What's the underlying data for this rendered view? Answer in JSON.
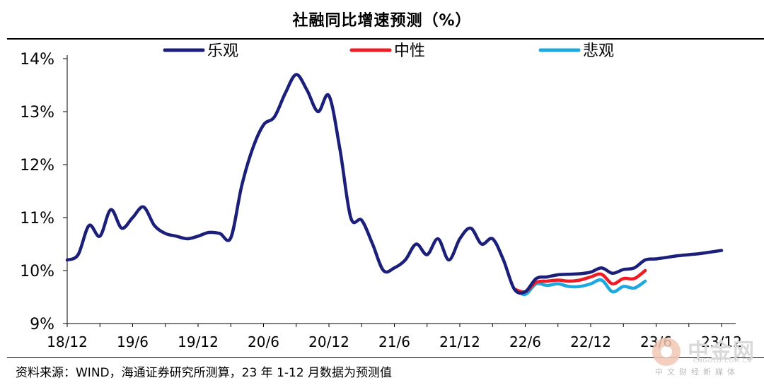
{
  "title": "社融同比增速预测（%）",
  "source": "资料来源：WIND，海通证券研究所测算，23 年 1-12 月数据为预测值",
  "watermark": {
    "name": "中金网",
    "url": "CNGOLD.COM.CN",
    "tagline": "中文财经新媒体"
  },
  "chart_data": {
    "type": "line",
    "title": "社融同比增速预测（%）",
    "xlabel": "",
    "ylabel": "",
    "ylim": [
      9,
      14
    ],
    "yticks": [
      "9%",
      "10%",
      "11%",
      "12%",
      "13%",
      "14%"
    ],
    "xticks": [
      "18/12",
      "19/6",
      "19/12",
      "20/6",
      "20/12",
      "21/6",
      "21/12",
      "22/6",
      "22/12",
      "23/6",
      "23/12"
    ],
    "x_index_range": [
      0,
      60
    ],
    "legend_position": "top",
    "colors": {
      "乐观": "#1b1f7a",
      "中性": "#ee1c25",
      "悲观": "#1ea8e0"
    },
    "series": [
      {
        "name": "乐观",
        "x": [
          0,
          1,
          2,
          3,
          4,
          5,
          6,
          7,
          8,
          9,
          10,
          11,
          12,
          13,
          14,
          15,
          16,
          17,
          18,
          19,
          20,
          21,
          22,
          23,
          24,
          25,
          26,
          27,
          28,
          29,
          30,
          31,
          32,
          33,
          34,
          35,
          36,
          37,
          38,
          39,
          40,
          41,
          42,
          43,
          44,
          45,
          46,
          47,
          48,
          49,
          50,
          51,
          52,
          53,
          54,
          55,
          56,
          57,
          58,
          59,
          60
        ],
        "values": [
          10.2,
          10.3,
          10.85,
          10.65,
          11.15,
          10.8,
          11.0,
          11.2,
          10.85,
          10.7,
          10.65,
          10.6,
          10.65,
          10.72,
          10.7,
          10.62,
          11.6,
          12.3,
          12.75,
          12.9,
          13.35,
          13.7,
          13.4,
          13.0,
          13.3,
          12.3,
          11.0,
          10.95,
          10.5,
          10.0,
          10.05,
          10.2,
          10.5,
          10.3,
          10.6,
          10.2,
          10.6,
          10.8,
          10.5,
          10.6,
          10.2,
          9.65,
          9.6,
          9.85,
          9.88,
          9.92,
          9.93,
          9.94,
          9.97,
          10.05,
          9.95,
          10.02,
          10.05,
          10.2,
          10.22,
          10.25,
          10.28,
          10.3,
          10.32,
          10.35,
          10.38
        ]
      },
      {
        "name": "中性",
        "x": [
          41,
          42,
          43,
          44,
          45,
          46,
          47,
          48,
          49,
          50,
          51,
          52,
          53
        ],
        "values": [
          9.65,
          9.6,
          9.78,
          9.8,
          9.82,
          9.8,
          9.82,
          9.88,
          9.93,
          9.75,
          9.85,
          9.85,
          10.0
        ]
      },
      {
        "name": "悲观",
        "x": [
          41,
          42,
          43,
          44,
          45,
          46,
          47,
          48,
          49,
          50,
          51,
          52,
          53
        ],
        "values": [
          9.65,
          9.55,
          9.75,
          9.72,
          9.75,
          9.7,
          9.7,
          9.75,
          9.82,
          9.6,
          9.7,
          9.67,
          9.8
        ]
      }
    ]
  }
}
